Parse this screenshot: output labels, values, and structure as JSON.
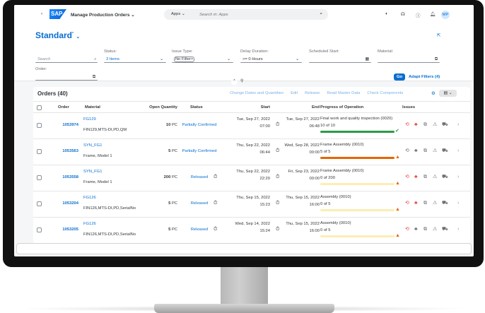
{
  "shell": {
    "back": "‹",
    "logo": "SAP",
    "app_title": "Manage Production Orders",
    "search_scope": "Apps",
    "search_placeholder": "Search in: Apps",
    "avatar": "MP"
  },
  "header": {
    "variant": "Standard",
    "modified": "*"
  },
  "filters": {
    "search_placeholder": "Search",
    "status_label": "Status:",
    "status_value": "3 Items",
    "issue_label": "Issue Type:",
    "issue_token": "No Filter",
    "delay_label": "Delay Duration:",
    "delay_value": ">= 0 Hours",
    "sched_label": "Scheduled Start:",
    "material_label": "Material:",
    "order_label": "Order:",
    "go": "Go",
    "adapt": "Adapt Filters (4)"
  },
  "table": {
    "title": "Orders (40)",
    "actions": [
      "Change Dates and Quantities",
      "Edit",
      "Release",
      "Read Master Data",
      "Check Components"
    ],
    "columns": {
      "order": "Order",
      "material": "Material",
      "qty": "Open Quantity",
      "status": "Status",
      "start": "Start",
      "end": "End",
      "progress": "Progress of Operation",
      "issues": "Issues"
    },
    "rows": [
      {
        "order": "1053974",
        "material": "FG129",
        "material_desc": "FIN129,MTS-DI,PD,QM",
        "qty": "10",
        "unit": "PC",
        "status": "Partially Confirmed",
        "start_date": "Tue, Sep 27, 2022",
        "start_time": "07:00",
        "start_icon": false,
        "end_date": "Tue, Sep 27, 2022",
        "end_time": "06:48",
        "operation": "Final work and quality inspection (0020)",
        "progress_text": "10 of 10",
        "progress": 1.0,
        "progress_state": "success",
        "issues_red": [
          true,
          true,
          false,
          false,
          false
        ]
      },
      {
        "order": "1053563",
        "material": "SYN_FG1",
        "material_desc": "Frame, Model 1",
        "qty": "5",
        "unit": "PC",
        "status": "Partially Confirmed",
        "start_date": "Thu, Sep 22, 2022",
        "start_time": "06:44",
        "start_icon": false,
        "end_date": "Wed, Sep 28, 2022",
        "end_time": "00:00",
        "operation": "Frame Assembly (0010)",
        "progress_text": "5 of 5",
        "progress": 1.0,
        "progress_state": "warning",
        "issues_red": [
          false,
          false,
          false,
          false,
          false
        ]
      },
      {
        "order": "1053558",
        "material": "SYN_FG1",
        "material_desc": "Frame, Model 1",
        "qty": "200",
        "unit": "PC",
        "status": "Released",
        "start_date": "Thu, Sep 22, 2022",
        "start_time": "22:20",
        "start_icon": true,
        "end_date": "Fri, Sep 23, 2022",
        "end_time": "00:00",
        "operation": "Frame Assembly (0010)",
        "progress_text": "0 of 200",
        "progress": 0,
        "progress_state": "warning",
        "issues_red": [
          true,
          true,
          false,
          false,
          false
        ]
      },
      {
        "order": "1053204",
        "material": "FG126",
        "material_desc": "FIN126,MTS-DI,PD,SerialNo",
        "qty": "5",
        "unit": "PC",
        "status": "Released",
        "start_date": "Thu, Sep 15, 2022",
        "start_time": "15:23",
        "start_icon": true,
        "end_date": "Thu, Sep 15, 2022",
        "end_time": "16:00",
        "operation": "Assembly (0010)",
        "progress_text": "0 of 5",
        "progress": 0,
        "progress_state": "warning",
        "issues_red": [
          true,
          true,
          false,
          false,
          false
        ]
      },
      {
        "order": "1053205",
        "material": "FG126",
        "material_desc": "FIN126,MTS-DI,PD,SerialNo",
        "qty": "5",
        "unit": "PC",
        "status": "Released",
        "start_date": "Wed, Sep 14, 2022",
        "start_time": "15:24",
        "start_icon": true,
        "end_date": "Thu, Sep 15, 2022",
        "end_time": "16:00",
        "operation": "Assembly (0010)",
        "progress_text": "0 of 5",
        "progress": 0,
        "progress_state": "warning",
        "issues_red": [
          true,
          false,
          false,
          false,
          false
        ]
      }
    ]
  },
  "colors": {
    "accent": "#0a6ed1",
    "success": "#2b9a4a",
    "warning": "#e76500",
    "critical": "#e9403b",
    "track": "#fdedb4"
  }
}
